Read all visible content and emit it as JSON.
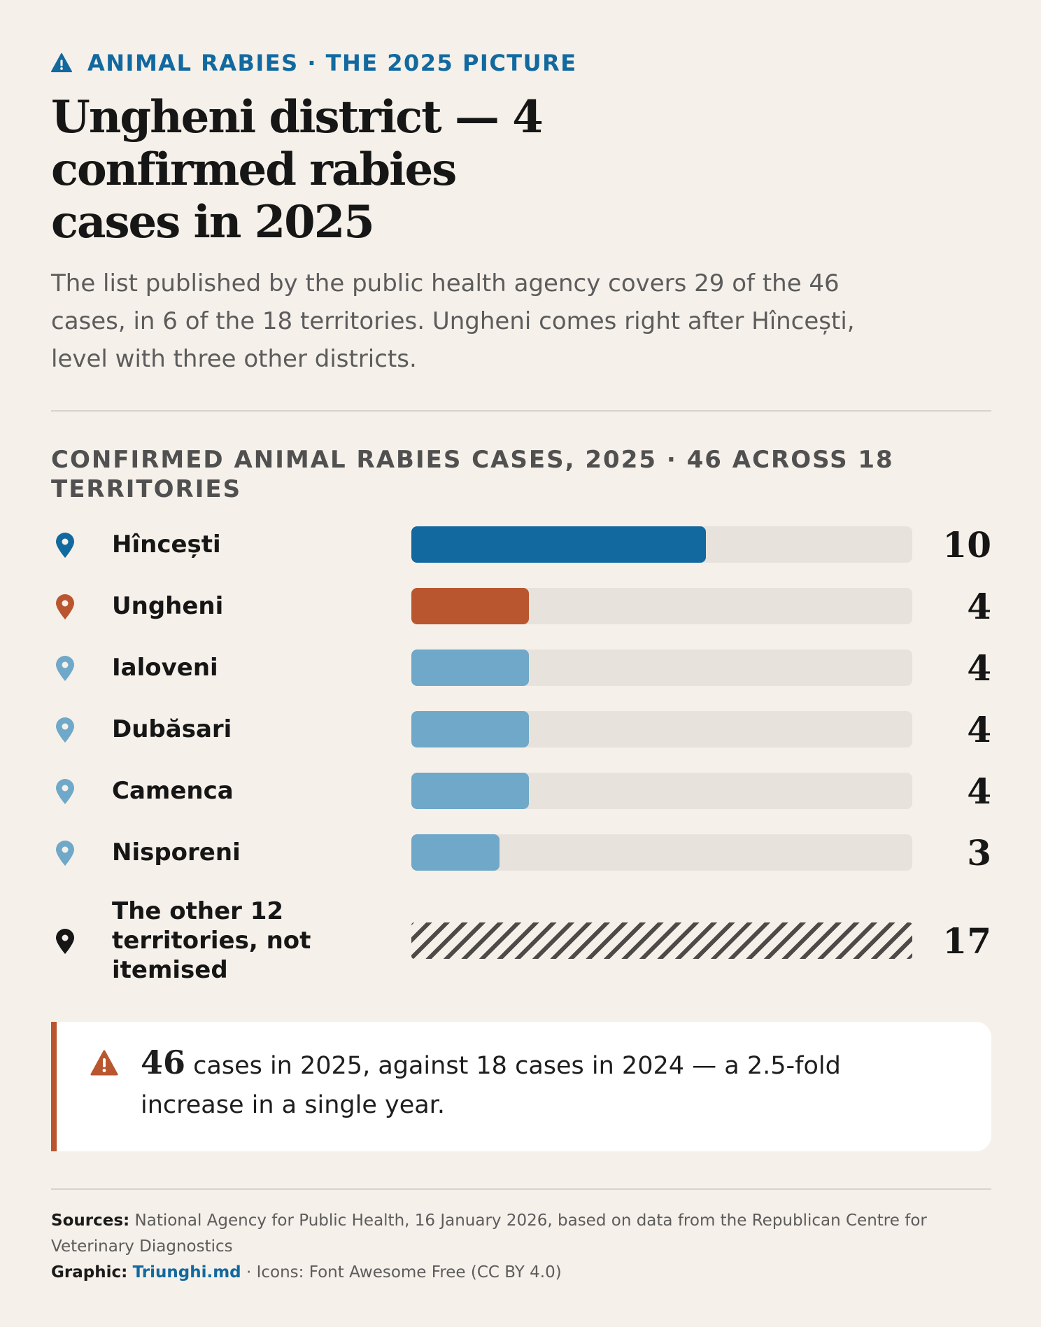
{
  "kicker": "ANIMAL RABIES · THE 2025 PICTURE",
  "title": "Ungheni district — 4 confirmed rabies cases in 2025",
  "subtitle": "The list published by the public health agency covers 29 of the 46 cases, in 6 of the 18 territories. Ungheni comes right after Hîncești, level with three other districts.",
  "colors": {
    "accent": "#11699f",
    "highlight": "#b9562f",
    "muted_bar": "#6fa8c8",
    "track": "#e8e2dc",
    "hatch": "#4d4a47",
    "background": "#f5f0e9"
  },
  "chart_data": {
    "type": "bar",
    "orientation": "horizontal",
    "title": "CONFIRMED ANIMAL RABIES CASES, 2025 · 46 ACROSS 18 TERRITORIES",
    "xlim": [
      0,
      17
    ],
    "categories": [
      "Hîncești",
      "Ungheni",
      "Ialoveni",
      "Dubăsari",
      "Camenca",
      "Nisporeni",
      "The other 12 territories, not itemised"
    ],
    "values": [
      10,
      4,
      4,
      4,
      4,
      3,
      17
    ],
    "bar_colors": [
      "#11699f",
      "#b9562f",
      "#6fa8c8",
      "#6fa8c8",
      "#6fa8c8",
      "#6fa8c8",
      "hatched"
    ],
    "pin_colors": [
      "#11699f",
      "#b9562f",
      "#6fa8c8",
      "#6fa8c8",
      "#6fa8c8",
      "#6fa8c8",
      "#161616"
    ],
    "grid": false,
    "legend": "none"
  },
  "callout": {
    "icon": "warning-icon",
    "big_number": "46",
    "text": " cases in 2025, against 18 cases in 2024 — a 2.5-fold increase in a single year."
  },
  "footer": {
    "sources_label": "Sources:",
    "sources_text": " National Agency for Public Health, 16 January 2026, based on data from the Republican Centre for Veterinary Diagnostics",
    "graphic_label": "Graphic:",
    "graphic_link": "Triunghi.md",
    "graphic_rest": " · Icons: Font Awesome Free (CC BY 4.0)"
  }
}
